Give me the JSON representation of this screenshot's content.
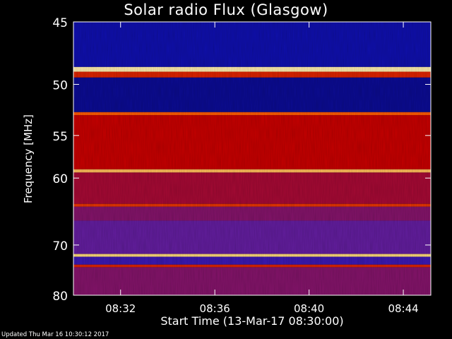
{
  "chart_data": {
    "type": "heatmap",
    "title": "Solar radio Flux (Glasgow)",
    "ylabel": "Frequency [MHz]",
    "xlabel": "Start Time (13-Mar-17 08:30:00)",
    "x_range": [
      "08:30:00",
      "08:45:10"
    ],
    "x_ticks": [
      "08:32",
      "08:36",
      "08:40",
      "08:44"
    ],
    "y_range": [
      45,
      80
    ],
    "y_ticks": [
      45,
      50,
      55,
      60,
      70,
      80
    ],
    "y_scale": "reciprocal",
    "colormap": "blue-red-yellow-white",
    "bands": [
      {
        "from": 45.0,
        "to": 48.5,
        "level": 0.08
      },
      {
        "from": 48.5,
        "to": 48.9,
        "level": 0.95
      },
      {
        "from": 48.9,
        "to": 49.4,
        "level": 0.55
      },
      {
        "from": 49.4,
        "to": 52.6,
        "level": 0.06
      },
      {
        "from": 52.6,
        "to": 52.9,
        "level": 0.7
      },
      {
        "from": 52.9,
        "to": 58.9,
        "level": 0.45
      },
      {
        "from": 58.9,
        "to": 59.3,
        "level": 0.85
      },
      {
        "from": 59.3,
        "to": 63.5,
        "level": 0.4
      },
      {
        "from": 63.5,
        "to": 63.9,
        "level": 0.6
      },
      {
        "from": 63.9,
        "to": 66.0,
        "level": 0.35
      },
      {
        "from": 66.0,
        "to": 71.6,
        "level": 0.3
      },
      {
        "from": 71.6,
        "to": 72.1,
        "level": 0.9
      },
      {
        "from": 72.1,
        "to": 73.6,
        "level": 0.2
      },
      {
        "from": 73.6,
        "to": 74.1,
        "level": 0.55
      },
      {
        "from": 74.1,
        "to": 80.0,
        "level": 0.35
      }
    ]
  },
  "footer": {
    "updated": "Updated Thu Mar 16 10:30:12 2017"
  },
  "colors": {
    "background": "#000000",
    "low": "#000080",
    "mid": "#dd0000",
    "high": "#ffff80"
  }
}
